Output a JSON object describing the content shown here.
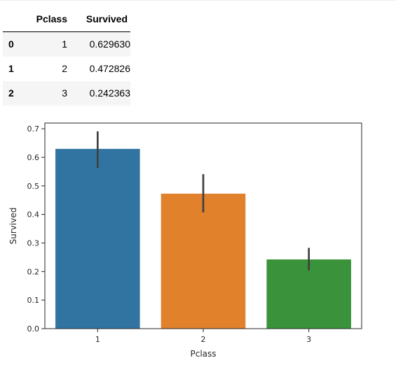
{
  "table": {
    "columns": [
      "Pclass",
      "Survived"
    ],
    "rows": [
      {
        "index": "0",
        "pclass": "1",
        "survived": "0.629630"
      },
      {
        "index": "1",
        "pclass": "2",
        "survived": "0.472826"
      },
      {
        "index": "2",
        "pclass": "3",
        "survived": "0.242363"
      }
    ]
  },
  "chart_data": {
    "type": "bar",
    "categories": [
      "1",
      "2",
      "3"
    ],
    "values": [
      0.62963,
      0.472826,
      0.242363
    ],
    "ci": [
      [
        0.563,
        0.691
      ],
      [
        0.407,
        0.541
      ],
      [
        0.204,
        0.283
      ]
    ],
    "colors": [
      "#3274a1",
      "#e1812c",
      "#3a923a"
    ],
    "error_color": "#404040",
    "title": "",
    "xlabel": "Pclass",
    "ylabel": "Survived",
    "ylim": [
      0.0,
      0.72
    ],
    "yticks": [
      "0.0",
      "0.1",
      "0.2",
      "0.3",
      "0.4",
      "0.5",
      "0.6",
      "0.7"
    ],
    "grid": false
  }
}
